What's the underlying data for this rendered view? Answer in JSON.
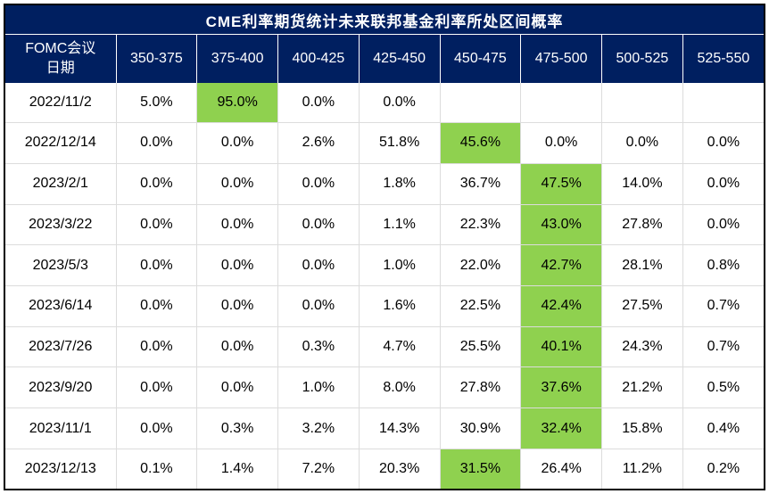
{
  "title": "CME利率期货统计未来联邦基金利率所处区间概率",
  "highlight_color": "#8fd14f",
  "header_color": "#001f60",
  "chart_data": {
    "type": "table",
    "title": "CME利率期货统计未来联邦基金利率所处区间概率",
    "row_header_label_line1": "FOMC会议",
    "row_header_label_line2": "日期",
    "columns": [
      "350-375",
      "375-400",
      "400-425",
      "425-450",
      "450-475",
      "475-500",
      "500-525",
      "525-550"
    ],
    "rows": [
      {
        "date": "2022/11/2",
        "values": [
          "5.0%",
          "95.0%",
          "0.0%",
          "0.0%",
          "",
          "",
          "",
          ""
        ],
        "highlight": 1
      },
      {
        "date": "2022/12/14",
        "values": [
          "0.0%",
          "0.0%",
          "2.6%",
          "51.8%",
          "45.6%",
          "0.0%",
          "0.0%",
          "0.0%"
        ],
        "highlight": 4
      },
      {
        "date": "2023/2/1",
        "values": [
          "0.0%",
          "0.0%",
          "0.0%",
          "1.8%",
          "36.7%",
          "47.5%",
          "14.0%",
          "0.0%"
        ],
        "highlight": 5
      },
      {
        "date": "2023/3/22",
        "values": [
          "0.0%",
          "0.0%",
          "0.0%",
          "1.1%",
          "22.3%",
          "43.0%",
          "27.8%",
          "0.0%"
        ],
        "highlight": 5
      },
      {
        "date": "2023/5/3",
        "values": [
          "0.0%",
          "0.0%",
          "0.0%",
          "1.0%",
          "22.0%",
          "42.7%",
          "28.1%",
          "0.8%"
        ],
        "highlight": 5
      },
      {
        "date": "2023/6/14",
        "values": [
          "0.0%",
          "0.0%",
          "0.0%",
          "1.6%",
          "22.5%",
          "42.4%",
          "27.5%",
          "0.7%"
        ],
        "highlight": 5
      },
      {
        "date": "2023/7/26",
        "values": [
          "0.0%",
          "0.0%",
          "0.3%",
          "4.7%",
          "25.5%",
          "40.1%",
          "24.3%",
          "0.7%"
        ],
        "highlight": 5
      },
      {
        "date": "2023/9/20",
        "values": [
          "0.0%",
          "0.0%",
          "1.0%",
          "8.0%",
          "27.8%",
          "37.6%",
          "21.2%",
          "0.5%"
        ],
        "highlight": 5
      },
      {
        "date": "2023/11/1",
        "values": [
          "0.0%",
          "0.3%",
          "3.2%",
          "14.3%",
          "30.9%",
          "32.4%",
          "15.8%",
          "0.4%"
        ],
        "highlight": 5
      },
      {
        "date": "2023/12/13",
        "values": [
          "0.1%",
          "1.4%",
          "7.2%",
          "20.3%",
          "31.5%",
          "26.4%",
          "11.2%",
          "0.2%"
        ],
        "highlight": 4
      }
    ]
  }
}
